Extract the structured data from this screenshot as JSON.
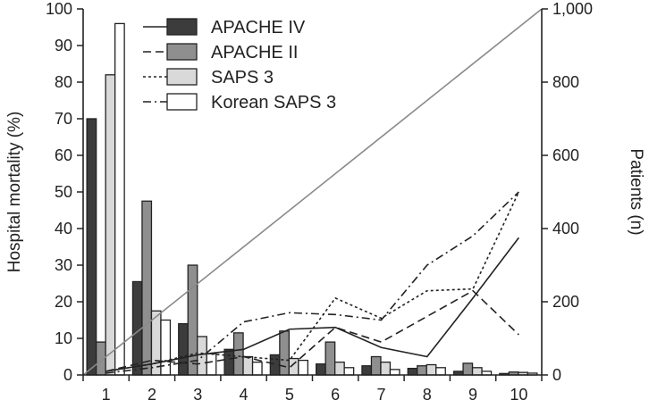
{
  "chart_data": {
    "type": "bar",
    "title": "",
    "xlabel": "",
    "ylabel": "Hospital mortality (%)",
    "y2label": "Patients (n)",
    "ylim": [
      0,
      100
    ],
    "y2lim": [
      0,
      1000
    ],
    "categories": [
      "1",
      "2",
      "3",
      "4",
      "5",
      "6",
      "7",
      "8",
      "9",
      "10"
    ],
    "yticks": [
      "0",
      "10",
      "20",
      "30",
      "40",
      "50",
      "60",
      "70",
      "80",
      "90",
      "100"
    ],
    "y2ticks": [
      "0",
      "200",
      "400",
      "600",
      "800",
      "1,000"
    ],
    "bar_axis": "right",
    "bar_series": [
      {
        "name": "APACHE IV",
        "color": "#3c3c3c",
        "values": [
          700,
          255,
          140,
          70,
          55,
          30,
          25,
          18,
          10,
          4
        ]
      },
      {
        "name": "APACHE II",
        "color": "#8f8f8f",
        "values": [
          90,
          475,
          300,
          115,
          120,
          90,
          50,
          25,
          32,
          8
        ]
      },
      {
        "name": "SAPS 3",
        "color": "#d9d9d9",
        "values": [
          820,
          175,
          105,
          50,
          45,
          35,
          35,
          28,
          20,
          7
        ]
      },
      {
        "name": "Korean SAPS 3",
        "color": "#ffffff",
        "values": [
          960,
          150,
          58,
          35,
          40,
          20,
          15,
          20,
          10,
          5
        ]
      }
    ],
    "line_axis": "left",
    "line_series": [
      {
        "name": "APACHE IV",
        "dash": "solid",
        "values": [
          1,
          3,
          5.5,
          7,
          12.5,
          13,
          7.5,
          5,
          21,
          37.5
        ]
      },
      {
        "name": "APACHE II",
        "dash": "dashed",
        "values": [
          1,
          4,
          3,
          5,
          2,
          13,
          9,
          16,
          23,
          11
        ]
      },
      {
        "name": "SAPS 3",
        "dash": "dotted",
        "values": [
          1,
          3,
          6,
          5,
          4,
          21,
          15.5,
          23,
          23.5,
          50
        ]
      },
      {
        "name": "Korean SAPS 3",
        "dash": "dash-dot",
        "values": [
          0.5,
          2,
          4,
          14.5,
          17,
          16.5,
          15,
          30,
          38,
          50
        ]
      }
    ],
    "reference_line": {
      "from": [
        0,
        0
      ],
      "to": [
        100,
        1000
      ],
      "color": "#8a8a8a"
    },
    "legend": {
      "placement": "top-center",
      "entries": [
        "APACHE IV",
        "APACHE II",
        "SAPS 3",
        "Korean SAPS 3"
      ]
    }
  }
}
